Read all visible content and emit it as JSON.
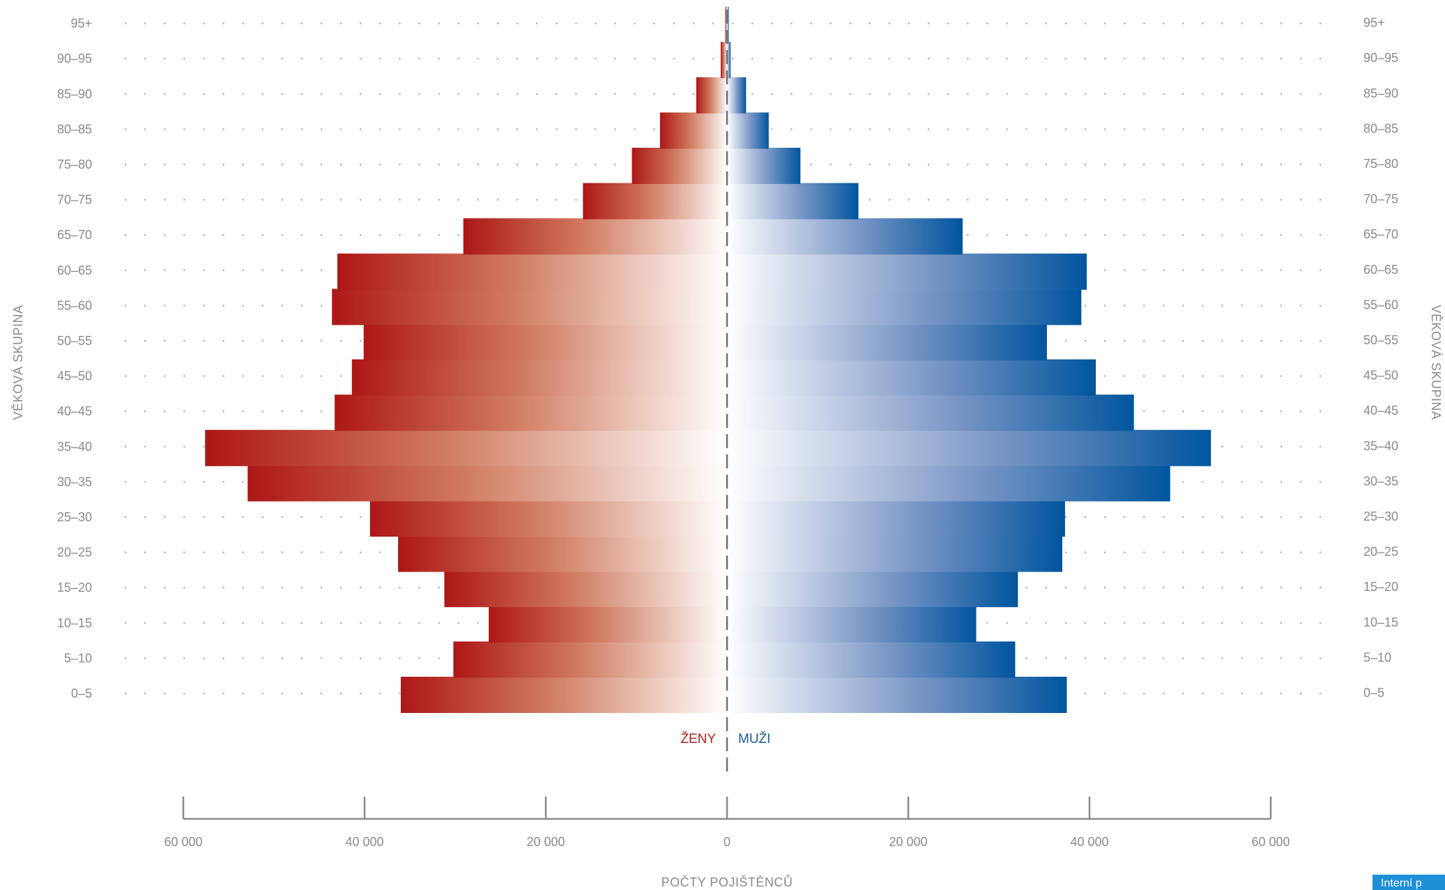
{
  "chart_data": {
    "type": "bar",
    "orientation": "horizontal-population-pyramid",
    "title": "",
    "xlabel": "POČTY POJIŠTĚNCŮ",
    "ylabel_left": "VĚKOVÁ SKUPINA",
    "ylabel_right": "VĚKOVÁ SKUPINA",
    "categories": [
      "0–5",
      "5–10",
      "10–15",
      "15–20",
      "20–25",
      "25–30",
      "30–35",
      "35–40",
      "40–45",
      "45–50",
      "50–55",
      "55–60",
      "60–65",
      "65–70",
      "70–75",
      "75–80",
      "80–85",
      "85–90",
      "90–95",
      "95+"
    ],
    "series": [
      {
        "name": "ŽENY",
        "color": "#b01a1a",
        "values": [
          36000,
          30200,
          26300,
          31200,
          36300,
          39400,
          52900,
          57600,
          43300,
          41400,
          40100,
          43600,
          43000,
          29100,
          15900,
          10500,
          7400,
          3400,
          700,
          200
        ]
      },
      {
        "name": "MUŽI",
        "color": "#00559e",
        "values": [
          37500,
          31800,
          27500,
          32100,
          37000,
          37300,
          48900,
          53400,
          44900,
          40700,
          35300,
          39100,
          39700,
          26000,
          14500,
          8100,
          4600,
          2100,
          400,
          200
        ]
      }
    ],
    "xlim": [
      -60000,
      60000
    ],
    "x_ticks": [
      -60000,
      -40000,
      -20000,
      0,
      20000,
      40000,
      60000
    ],
    "x_tick_labels": [
      "60 000",
      "40 000",
      "20 000",
      "0",
      "20 000",
      "40 000",
      "60 000"
    ],
    "legend": [
      "ŽENY",
      "MUŽI"
    ],
    "legend_placement": "bottom-center",
    "grid": "dotted-rows"
  },
  "badge": {
    "label": "Interní p"
  }
}
